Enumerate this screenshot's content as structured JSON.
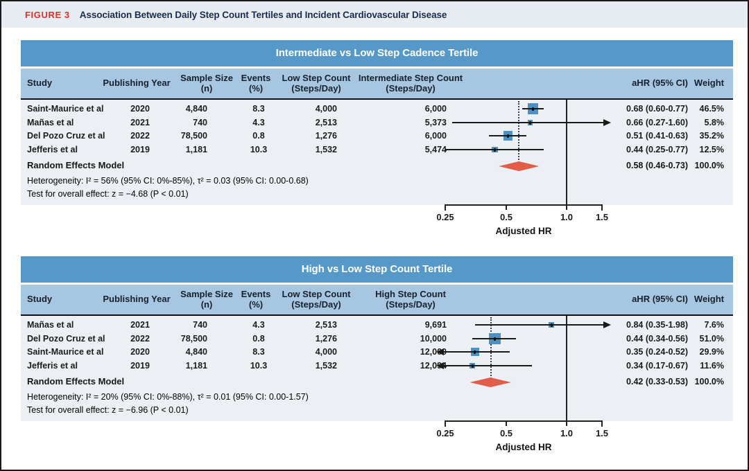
{
  "header": {
    "label": "FIGURE 3",
    "title": "Association Between Daily Step Count Tertiles and Incident Cardiovascular Disease"
  },
  "colors": {
    "accent_red": "#d7332a",
    "navy_title": "#1a2c4e",
    "header_text": "#17202c",
    "figure_header_bg": "#e6ecf2",
    "panel_title_bg": "#5699c8",
    "column_header_bg": "#a6c6e1",
    "body_bg": "#ecf0f4",
    "square_blue": "#4a91c5",
    "diamond_red": "#e35c49",
    "line_black": "#1a1a1a"
  },
  "axis": {
    "scale": "log",
    "min": 0.25,
    "max": 1.5,
    "tick_values": [
      0.25,
      0.5,
      1.0,
      1.5
    ],
    "tick_labels": [
      "0.25",
      "0.5",
      "1.0",
      "1.5"
    ],
    "reference_line": 1.0,
    "label": "Adjusted HR"
  },
  "chart_data": [
    {
      "type": "forest",
      "title": "Intermediate vs Low Step Cadence Tertile",
      "xlabel": "Adjusted HR",
      "xscale": "log",
      "xlim": [
        0.25,
        1.5
      ],
      "xticks": [
        0.25,
        0.5,
        1.0,
        1.5
      ],
      "ref_line": 1.0,
      "columns": [
        {
          "label": "Study",
          "sub": ""
        },
        {
          "label": "Publishing Year",
          "sub": ""
        },
        {
          "label": "Sample Size",
          "sub": "(n)"
        },
        {
          "label": "Events",
          "sub": "(%)"
        },
        {
          "label": "Low Step Count",
          "sub": "(Steps/Day)"
        },
        {
          "label": "Intermediate Step Count",
          "sub": "(Steps/Day)"
        },
        {
          "label": "aHR (95% CI)",
          "sub": ""
        },
        {
          "label": "Weight",
          "sub": ""
        }
      ],
      "studies": [
        {
          "study": "Saint-Maurice et al",
          "year": "2020",
          "n": "4,840",
          "events_pct": "8.3",
          "low_steps": "4,000",
          "comp_steps": "6,000",
          "hr": 0.68,
          "ci_low": 0.6,
          "ci_high": 0.77,
          "ahr_label": "0.68 (0.60-0.77)",
          "weight_pct": 46.5,
          "weight_label": "46.5%"
        },
        {
          "study": "Mañas et al",
          "year": "2021",
          "n": "740",
          "events_pct": "4.3",
          "low_steps": "2,513",
          "comp_steps": "5,373",
          "hr": 0.66,
          "ci_low": 0.27,
          "ci_high": 1.6,
          "ahr_label": "0.66 (0.27-1.60)",
          "weight_pct": 5.8,
          "weight_label": "5.8%"
        },
        {
          "study": "Del Pozo Cruz et al",
          "year": "2022",
          "n": "78,500",
          "events_pct": "0.8",
          "low_steps": "1,276",
          "comp_steps": "6,000",
          "hr": 0.51,
          "ci_low": 0.41,
          "ci_high": 0.63,
          "ahr_label": "0.51 (0.41-0.63)",
          "weight_pct": 35.2,
          "weight_label": "35.2%"
        },
        {
          "study": "Jefferis et al",
          "year": "2019",
          "n": "1,181",
          "events_pct": "10.3",
          "low_steps": "1,532",
          "comp_steps": "5,474",
          "hr": 0.44,
          "ci_low": 0.25,
          "ci_high": 0.77,
          "ahr_label": "0.44 (0.25-0.77)",
          "weight_pct": 12.5,
          "weight_label": "12.5%"
        }
      ],
      "pooled": {
        "label": "Random Effects Model",
        "hr": 0.58,
        "ci_low": 0.46,
        "ci_high": 0.73,
        "ahr_label": "0.58 (0.46-0.73)",
        "weight_label": "100.0%"
      },
      "heterogeneity": "Heterogeneity: I² = 56% (95% CI: 0%-85%), τ² = 0.03 (95% CI: 0.00-0.68)",
      "overall_test": "Test for overall effect: z = −4.68 (P < 0.01)"
    },
    {
      "type": "forest",
      "title": "High vs Low Step Count Tertile",
      "xlabel": "Adjusted HR",
      "xscale": "log",
      "xlim": [
        0.25,
        1.5
      ],
      "xticks": [
        0.25,
        0.5,
        1.0,
        1.5
      ],
      "ref_line": 1.0,
      "columns": [
        {
          "label": "Study",
          "sub": ""
        },
        {
          "label": "Publishing Year",
          "sub": ""
        },
        {
          "label": "Sample Size",
          "sub": "(n)"
        },
        {
          "label": "Events",
          "sub": "(%)"
        },
        {
          "label": "Low Step Count",
          "sub": "(Steps/Day)"
        },
        {
          "label": "High Step Count",
          "sub": "(Steps/Day)"
        },
        {
          "label": "aHR (95% CI)",
          "sub": ""
        },
        {
          "label": "Weight",
          "sub": ""
        }
      ],
      "studies": [
        {
          "study": "Mañas et al",
          "year": "2021",
          "n": "740",
          "events_pct": "4.3",
          "low_steps": "2,513",
          "comp_steps": "9,691",
          "hr": 0.84,
          "ci_low": 0.35,
          "ci_high": 1.98,
          "ahr_label": "0.84 (0.35-1.98)",
          "weight_pct": 7.6,
          "weight_label": "7.6%"
        },
        {
          "study": "Del Pozo Cruz et al",
          "year": "2022",
          "n": "78,500",
          "events_pct": "0.8",
          "low_steps": "1,276",
          "comp_steps": "10,000",
          "hr": 0.44,
          "ci_low": 0.34,
          "ci_high": 0.56,
          "ahr_label": "0.44 (0.34-0.56)",
          "weight_pct": 51.0,
          "weight_label": "51.0%"
        },
        {
          "study": "Saint-Maurice et al",
          "year": "2020",
          "n": "4,840",
          "events_pct": "8.3",
          "low_steps": "4,000",
          "comp_steps": "12,000",
          "hr": 0.35,
          "ci_low": 0.24,
          "ci_high": 0.52,
          "ahr_label": "0.35 (0.24-0.52)",
          "weight_pct": 29.9,
          "weight_label": "29.9%"
        },
        {
          "study": "Jefferis et al",
          "year": "2019",
          "n": "1,181",
          "events_pct": "10.3",
          "low_steps": "1,532",
          "comp_steps": "12,094",
          "hr": 0.34,
          "ci_low": 0.17,
          "ci_high": 0.67,
          "ahr_label": "0.34 (0.17-0.67)",
          "weight_pct": 11.6,
          "weight_label": "11.6%"
        }
      ],
      "pooled": {
        "label": "Random Effects Model",
        "hr": 0.42,
        "ci_low": 0.33,
        "ci_high": 0.53,
        "ahr_label": "0.42 (0.33-0.53)",
        "weight_label": "100.0%"
      },
      "heterogeneity": "Heterogeneity: I² = 20% (95% CI: 0%-88%), τ² = 0.01 (95% CI: 0.00-1.57)",
      "overall_test": "Test for overall effect: z = −6.96 (P < 0.01)"
    }
  ]
}
